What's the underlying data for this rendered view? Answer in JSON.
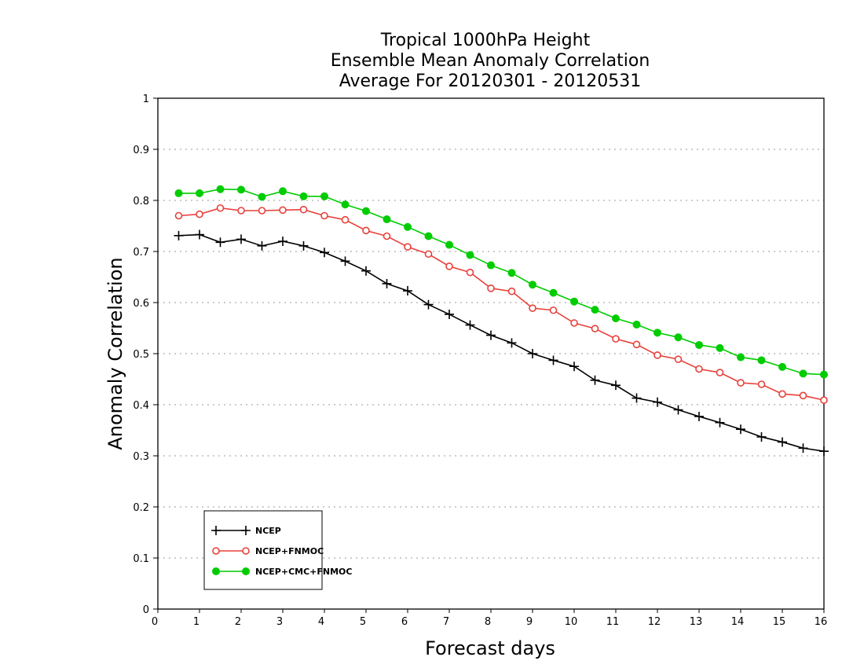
{
  "chart_data": {
    "type": "line",
    "title": [
      "Tropical 1000hPa Height",
      "Ensemble Mean Anomaly Correlation",
      "Average For 20120301 - 20120531"
    ],
    "xlabel": "Forecast days",
    "ylabel": "Anomaly Correlation",
    "xlim": [
      0,
      16
    ],
    "ylim": [
      0,
      1
    ],
    "xticks": [
      "0",
      "1",
      "2",
      "3",
      "4",
      "5",
      "6",
      "7",
      "8",
      "9",
      "10",
      "11",
      "12",
      "13",
      "14",
      "15",
      "16"
    ],
    "yticks": [
      "0",
      "0.1",
      "0.2",
      "0.3",
      "0.4",
      "0.5",
      "0.6",
      "0.7",
      "0.8",
      "0.9",
      "1"
    ],
    "grid": "horizontal dotted",
    "legend_position": "bottom-left",
    "x": [
      0.5,
      1,
      1.5,
      2,
      2.5,
      3,
      3.5,
      4,
      4.5,
      5,
      5.5,
      6,
      6.5,
      7,
      7.5,
      8,
      8.5,
      9,
      9.5,
      10,
      10.5,
      11,
      11.5,
      12,
      12.5,
      13,
      13.5,
      14,
      14.5,
      15,
      15.5,
      16
    ],
    "series": [
      {
        "name": "NCEP",
        "color": "#000000",
        "marker": "plus",
        "values": [
          0.731,
          0.733,
          0.718,
          0.724,
          0.711,
          0.72,
          0.711,
          0.698,
          0.681,
          0.662,
          0.637,
          0.623,
          0.596,
          0.577,
          0.556,
          0.536,
          0.521,
          0.5,
          0.487,
          0.475,
          0.448,
          0.438,
          0.413,
          0.405,
          0.39,
          0.377,
          0.365,
          0.352,
          0.337,
          0.327,
          0.315,
          0.309
        ]
      },
      {
        "name": "NCEP+FNMOC",
        "color": "#e8403a",
        "marker": "open-circle",
        "values": [
          0.77,
          0.773,
          0.785,
          0.78,
          0.78,
          0.781,
          0.782,
          0.77,
          0.762,
          0.741,
          0.73,
          0.709,
          0.695,
          0.671,
          0.659,
          0.628,
          0.622,
          0.589,
          0.585,
          0.56,
          0.549,
          0.529,
          0.518,
          0.497,
          0.489,
          0.47,
          0.463,
          0.443,
          0.44,
          0.421,
          0.418,
          0.409
        ]
      },
      {
        "name": "NCEP+CMC+FNMOC",
        "color": "#00cc00",
        "marker": "filled-circle",
        "values": [
          0.814,
          0.814,
          0.822,
          0.821,
          0.807,
          0.818,
          0.808,
          0.808,
          0.792,
          0.779,
          0.763,
          0.748,
          0.73,
          0.713,
          0.693,
          0.673,
          0.658,
          0.635,
          0.619,
          0.602,
          0.586,
          0.569,
          0.557,
          0.541,
          0.532,
          0.517,
          0.511,
          0.493,
          0.487,
          0.474,
          0.461,
          0.459
        ]
      }
    ]
  }
}
